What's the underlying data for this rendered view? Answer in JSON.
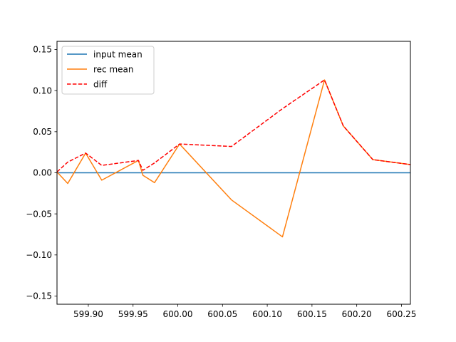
{
  "chart_data": {
    "type": "line",
    "title": "",
    "xlabel": "",
    "ylabel": "",
    "xlim": [
      599.865,
      600.26
    ],
    "ylim": [
      -0.16,
      0.16
    ],
    "grid": false,
    "legend_position": "top-left",
    "x_ticks": [
      599.9,
      599.95,
      600.0,
      600.05,
      600.1,
      600.15,
      600.2,
      600.25
    ],
    "x_tick_labels": [
      "599.90",
      "599.95",
      "600.00",
      "600.05",
      "600.10",
      "600.15",
      "600.20",
      "600.25"
    ],
    "y_ticks": [
      0.15,
      0.1,
      0.05,
      0.0,
      -0.05,
      -0.1,
      -0.15
    ],
    "y_tick_labels": [
      "0.15",
      "0.10",
      "0.05",
      "0.00",
      "−0.05",
      "−0.10",
      "−0.15"
    ],
    "series": [
      {
        "name": "input mean",
        "color": "#1f77b4",
        "style": "solid",
        "x": [
          599.865,
          600.26
        ],
        "y": [
          0.0,
          0.0
        ]
      },
      {
        "name": "rec mean",
        "color": "#ff7f0e",
        "style": "solid",
        "x": [
          599.865,
          599.877,
          599.897,
          599.915,
          599.956,
          599.961,
          599.974,
          600.002,
          600.06,
          600.117,
          600.164,
          600.185,
          600.218,
          600.26
        ],
        "y": [
          0.001,
          -0.013,
          0.024,
          -0.009,
          0.015,
          -0.003,
          -0.012,
          0.035,
          -0.033,
          -0.078,
          0.113,
          0.057,
          0.016,
          0.01
        ]
      },
      {
        "name": "diff",
        "color": "#ff0000",
        "style": "dashed",
        "x": [
          599.865,
          599.877,
          599.897,
          599.915,
          599.956,
          599.961,
          599.974,
          600.002,
          600.06,
          600.117,
          600.164,
          600.185,
          600.218,
          600.26
        ],
        "y": [
          0.001,
          0.013,
          0.024,
          0.009,
          0.015,
          0.003,
          0.012,
          0.035,
          0.032,
          0.078,
          0.113,
          0.057,
          0.016,
          0.01
        ]
      }
    ]
  }
}
